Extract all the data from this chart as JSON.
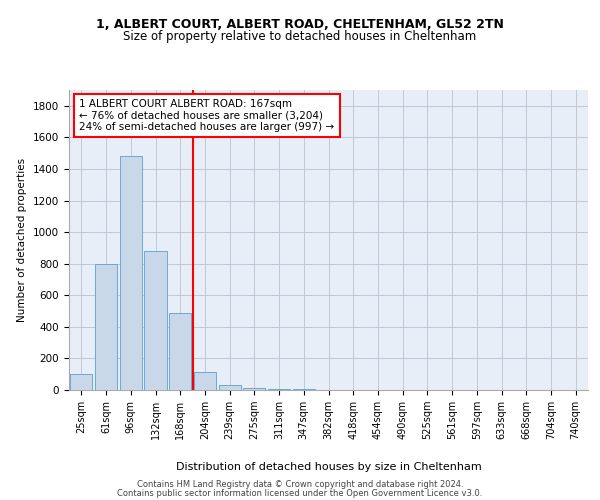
{
  "title_line1": "1, ALBERT COURT, ALBERT ROAD, CHELTENHAM, GL52 2TN",
  "title_line2": "Size of property relative to detached houses in Cheltenham",
  "xlabel": "Distribution of detached houses by size in Cheltenham",
  "ylabel": "Number of detached properties",
  "categories": [
    "25sqm",
    "61sqm",
    "96sqm",
    "132sqm",
    "168sqm",
    "204sqm",
    "239sqm",
    "275sqm",
    "311sqm",
    "347sqm",
    "382sqm",
    "418sqm",
    "454sqm",
    "490sqm",
    "525sqm",
    "561sqm",
    "597sqm",
    "633sqm",
    "668sqm",
    "704sqm",
    "740sqm"
  ],
  "values": [
    100,
    800,
    1480,
    880,
    490,
    115,
    30,
    12,
    8,
    5,
    3,
    2,
    2,
    1,
    1,
    1,
    1,
    0,
    0,
    0,
    0
  ],
  "bar_color": "#c8d8e8",
  "bar_edge_color": "#5a9fd4",
  "vline_index": 4.5,
  "vline_color": "red",
  "annotation_text": "1 ALBERT COURT ALBERT ROAD: 167sqm\n← 76% of detached houses are smaller (3,204)\n24% of semi-detached houses are larger (997) →",
  "annotation_box_color": "white",
  "annotation_box_edge": "red",
  "ylim": [
    0,
    1900
  ],
  "yticks": [
    0,
    200,
    400,
    600,
    800,
    1000,
    1200,
    1400,
    1600,
    1800
  ],
  "grid_color": "#c0c8d8",
  "bg_color": "#e8eef8",
  "footer_line1": "Contains HM Land Registry data © Crown copyright and database right 2024.",
  "footer_line2": "Contains public sector information licensed under the Open Government Licence v3.0."
}
